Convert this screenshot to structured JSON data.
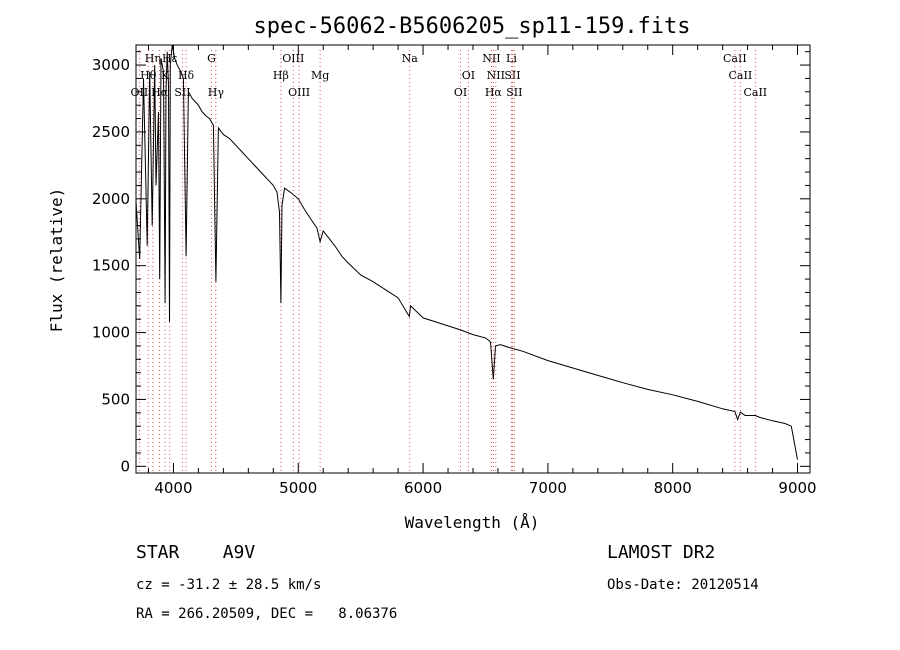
{
  "chart_data": {
    "type": "line",
    "title": "spec-56062-B5606205_sp11-159.fits",
    "xlabel": "Wavelength (Å)",
    "ylabel": "Flux (relative)",
    "xlim": [
      3700,
      9100
    ],
    "ylim": [
      -50,
      3150
    ],
    "x_ticks": [
      4000,
      5000,
      6000,
      7000,
      8000,
      9000
    ],
    "y_ticks": [
      0,
      500,
      1000,
      1500,
      2000,
      2500,
      3000
    ],
    "grid": false,
    "series": [
      {
        "x": [
          3700,
          3730,
          3760,
          3790,
          3810,
          3830,
          3850,
          3860,
          3880,
          3890,
          3900,
          3920,
          3933,
          3940,
          3950,
          3960,
          3968,
          3975,
          3990,
          4010,
          4030,
          4060,
          4080,
          4101,
          4120,
          4150,
          4180,
          4200,
          4230,
          4260,
          4290,
          4320,
          4340,
          4360,
          4400,
          4450,
          4500,
          4550,
          4600,
          4650,
          4700,
          4750,
          4800,
          4830,
          4850,
          4861,
          4870,
          4890,
          4920,
          4950,
          5000,
          5050,
          5100,
          5150,
          5175,
          5200,
          5250,
          5300,
          5350,
          5400,
          5500,
          5600,
          5700,
          5800,
          5890,
          5900,
          6000,
          6100,
          6200,
          6300,
          6400,
          6500,
          6540,
          6563,
          6580,
          6620,
          6700,
          6800,
          7000,
          7200,
          7400,
          7600,
          7800,
          8000,
          8200,
          8400,
          8498,
          8520,
          8542,
          8580,
          8662,
          8700,
          8800,
          8900,
          8950,
          9000
        ],
        "y": [
          1980,
          1550,
          2900,
          1650,
          2950,
          1800,
          3000,
          2100,
          2650,
          1400,
          3050,
          2950,
          1220,
          2800,
          3100,
          2850,
          1080,
          3000,
          3150,
          3050,
          3000,
          2950,
          2900,
          1570,
          2800,
          2750,
          2720,
          2700,
          2650,
          2620,
          2600,
          2550,
          1380,
          2530,
          2480,
          2450,
          2400,
          2350,
          2300,
          2250,
          2200,
          2150,
          2100,
          2050,
          1900,
          1220,
          1950,
          2080,
          2060,
          2040,
          2000,
          1920,
          1850,
          1780,
          1680,
          1760,
          1700,
          1640,
          1570,
          1520,
          1430,
          1380,
          1320,
          1260,
          1120,
          1200,
          1110,
          1080,
          1050,
          1020,
          985,
          960,
          930,
          650,
          900,
          910,
          885,
          860,
          790,
          735,
          680,
          625,
          575,
          535,
          485,
          430,
          410,
          350,
          405,
          380,
          380,
          365,
          340,
          320,
          300,
          50
        ]
      }
    ],
    "spectral_lines": [
      {
        "label": "Hη",
        "x": 3835,
        "row": 1
      },
      {
        "label": "Hε",
        "x": 3970,
        "row": 1
      },
      {
        "label": "G",
        "x": 4305,
        "row": 1
      },
      {
        "label": "OIII",
        "x": 4960,
        "row": 1
      },
      {
        "label": "Na",
        "x": 5893,
        "row": 1
      },
      {
        "label": "NII",
        "x": 6548,
        "row": 1
      },
      {
        "label": "Li",
        "x": 6708,
        "row": 1
      },
      {
        "label": "CaII",
        "x": 8498,
        "row": 1
      },
      {
        "label": "Hθ",
        "x": 3798,
        "row": 2
      },
      {
        "label": "K",
        "x": 3933,
        "row": 2
      },
      {
        "label": "Hδ",
        "x": 4101,
        "row": 2
      },
      {
        "label": "Hβ",
        "x": 4861,
        "row": 2
      },
      {
        "label": "Mg",
        "x": 5175,
        "row": 2
      },
      {
        "label": "OI",
        "x": 6363,
        "row": 2
      },
      {
        "label": "NII",
        "x": 6583,
        "row": 2
      },
      {
        "label": "SII",
        "x": 6716,
        "row": 2
      },
      {
        "label": "CaII",
        "x": 8542,
        "row": 2
      },
      {
        "label": "OII",
        "x": 3727,
        "row": 3
      },
      {
        "label": "Hα",
        "x": 3889,
        "row": 3
      },
      {
        "label": "SII",
        "x": 4072,
        "row": 3
      },
      {
        "label": "Hγ",
        "x": 4340,
        "row": 3
      },
      {
        "label": "OIII",
        "x": 5007,
        "row": 3
      },
      {
        "label": "OI",
        "x": 6300,
        "row": 3
      },
      {
        "label": "Hα",
        "x": 6563,
        "row": 3
      },
      {
        "label": "SII",
        "x": 6731,
        "row": 3
      },
      {
        "label": "CaII",
        "x": 8662,
        "row": 3
      }
    ]
  },
  "info": {
    "class": "STAR    A9V",
    "survey": "LAMOST DR2",
    "cz": "cz = -31.2 ± 28.5 km/s",
    "obs_date": "Obs-Date: 20120514",
    "coords": "RA = 266.20509, DEC =   8.06376"
  }
}
